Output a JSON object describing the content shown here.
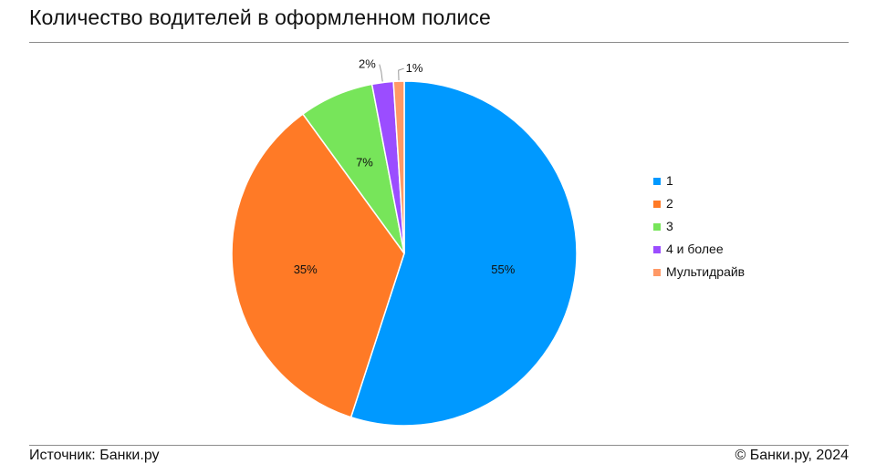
{
  "header": {
    "title": "Количество водителей в оформленном полисе"
  },
  "footer": {
    "source": "Источник: Банки.ру",
    "copyright": "© Банки.ру, 2024"
  },
  "chart_data": {
    "type": "pie",
    "title": "Количество водителей в оформленном полисе",
    "legend_position": "right",
    "slices": [
      {
        "label": "1",
        "value": 55,
        "display": "55%",
        "color": "#0099ff"
      },
      {
        "label": "2",
        "value": 35,
        "display": "35%",
        "color": "#ff7a26"
      },
      {
        "label": "3",
        "value": 7,
        "display": "7%",
        "color": "#77e55a"
      },
      {
        "label": "4 и более",
        "value": 2,
        "display": "2%",
        "color": "#9b4dff"
      },
      {
        "label": "Мультидрайв",
        "value": 1,
        "display": "1%",
        "color": "#ff9966"
      }
    ]
  }
}
